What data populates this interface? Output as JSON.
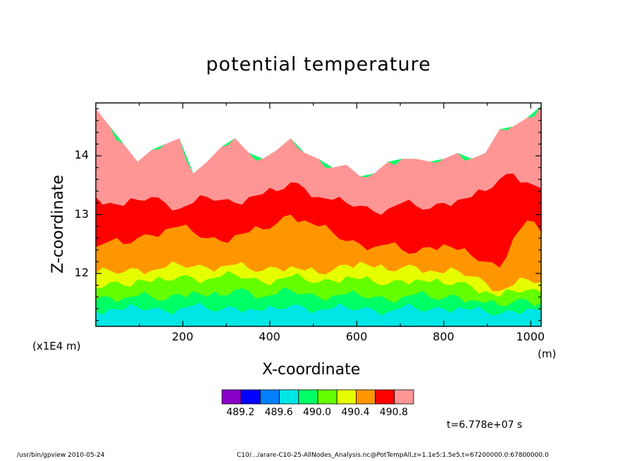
{
  "chart_data": {
    "type": "area",
    "title": "potential temperature",
    "xlabel": "X-coordinate",
    "ylabel": "Z-coordinate",
    "xunit": "(m)",
    "yunit": "(x1E4 m)",
    "xlim": [
      0,
      1024
    ],
    "ylim": [
      11.1,
      14.9
    ],
    "x_ticks": [
      "200",
      "400",
      "600",
      "800",
      "1000"
    ],
    "y_ticks": [
      "12",
      "13",
      "14"
    ],
    "x": [
      0,
      32,
      64,
      96,
      128,
      160,
      192,
      224,
      256,
      288,
      320,
      352,
      384,
      416,
      448,
      480,
      512,
      544,
      576,
      608,
      640,
      672,
      704,
      736,
      768,
      800,
      832,
      864,
      896,
      928,
      960,
      992,
      1024
    ],
    "levels": [
      "489.2",
      "489.6",
      "490.0",
      "490.4",
      "490.8"
    ],
    "colorbar_colors": [
      "#8a00c8",
      "#0000ff",
      "#0080ff",
      "#00e6e6",
      "#00ff64",
      "#64ff00",
      "#e6ff00",
      "#ff9600",
      "#ff0000",
      "#ff9696"
    ],
    "series": [
      {
        "color": "#00e6e6",
        "values": [
          11.35,
          11.4,
          11.38,
          11.42,
          11.4,
          11.36,
          11.4,
          11.45,
          11.4,
          11.38,
          11.42,
          11.4,
          11.36,
          11.4,
          11.45,
          11.42,
          11.38,
          11.4,
          11.42,
          11.4,
          11.38,
          11.35,
          11.42,
          11.4,
          11.38,
          11.4,
          11.42,
          11.38,
          11.35,
          11.3,
          11.36,
          11.4,
          11.38
        ]
      },
      {
        "color": "#00ff64",
        "values": [
          11.55,
          11.6,
          11.58,
          11.62,
          11.6,
          11.55,
          11.65,
          11.7,
          11.6,
          11.62,
          11.72,
          11.7,
          11.6,
          11.65,
          11.72,
          11.65,
          11.6,
          11.62,
          11.65,
          11.62,
          11.6,
          11.55,
          11.6,
          11.65,
          11.6,
          11.58,
          11.62,
          11.55,
          11.5,
          11.45,
          11.52,
          11.55,
          11.5
        ]
      },
      {
        "color": "#64ff00",
        "values": [
          11.75,
          11.85,
          11.8,
          11.9,
          11.85,
          11.88,
          11.95,
          11.92,
          11.9,
          11.95,
          11.98,
          11.92,
          11.85,
          11.9,
          11.95,
          11.9,
          11.85,
          11.88,
          11.95,
          11.9,
          11.85,
          11.82,
          11.88,
          11.9,
          11.85,
          11.82,
          11.85,
          11.78,
          11.7,
          11.6,
          11.7,
          11.72,
          11.68
        ]
      },
      {
        "color": "#e6ff00",
        "values": [
          12.0,
          12.05,
          12.02,
          12.08,
          12.05,
          12.1,
          12.15,
          12.12,
          12.1,
          12.12,
          12.15,
          12.08,
          12.05,
          12.1,
          12.12,
          12.05,
          12.0,
          12.05,
          12.15,
          12.2,
          12.1,
          12.05,
          12.1,
          12.12,
          12.05,
          12.0,
          12.05,
          11.95,
          11.85,
          11.7,
          11.8,
          11.9,
          11.85
        ]
      },
      {
        "color": "#ff9600",
        "values": [
          12.45,
          12.55,
          12.5,
          12.6,
          12.65,
          12.75,
          12.8,
          12.7,
          12.6,
          12.55,
          12.65,
          12.7,
          12.75,
          12.85,
          13.0,
          12.9,
          12.8,
          12.7,
          12.55,
          12.5,
          12.45,
          12.5,
          12.4,
          12.35,
          12.45,
          12.5,
          12.4,
          12.3,
          12.2,
          12.1,
          12.6,
          12.9,
          12.7
        ]
      },
      {
        "color": "#ff0000",
        "values": [
          13.3,
          13.2,
          13.15,
          13.25,
          13.3,
          13.2,
          13.1,
          13.2,
          13.3,
          13.25,
          13.2,
          13.3,
          13.35,
          13.4,
          13.55,
          13.45,
          13.3,
          13.25,
          13.2,
          13.15,
          13.05,
          13.1,
          13.2,
          13.15,
          13.1,
          13.2,
          13.25,
          13.3,
          13.4,
          13.6,
          13.7,
          13.55,
          13.45
        ]
      },
      {
        "color": "#ff9696",
        "values": [
          14.8,
          14.5,
          14.2,
          13.9,
          14.1,
          14.2,
          14.3,
          13.7,
          13.9,
          14.15,
          14.3,
          14.05,
          13.95,
          14.1,
          14.3,
          14.05,
          13.95,
          13.8,
          13.85,
          13.65,
          13.7,
          13.9,
          13.95,
          13.95,
          13.9,
          13.95,
          14.05,
          13.95,
          14.05,
          14.45,
          14.5,
          14.65,
          14.85
        ]
      }
    ]
  },
  "time_label": "t=6.778e+07 s",
  "footer_left": "/usr/bin/gpview   2010-05-24",
  "footer_right": "C10/.../arare-C10-25-AllNodes_Analysis.nc@PotTempAll,z=1.1e5:1.5e5,t=67200000.0:67800000.0"
}
